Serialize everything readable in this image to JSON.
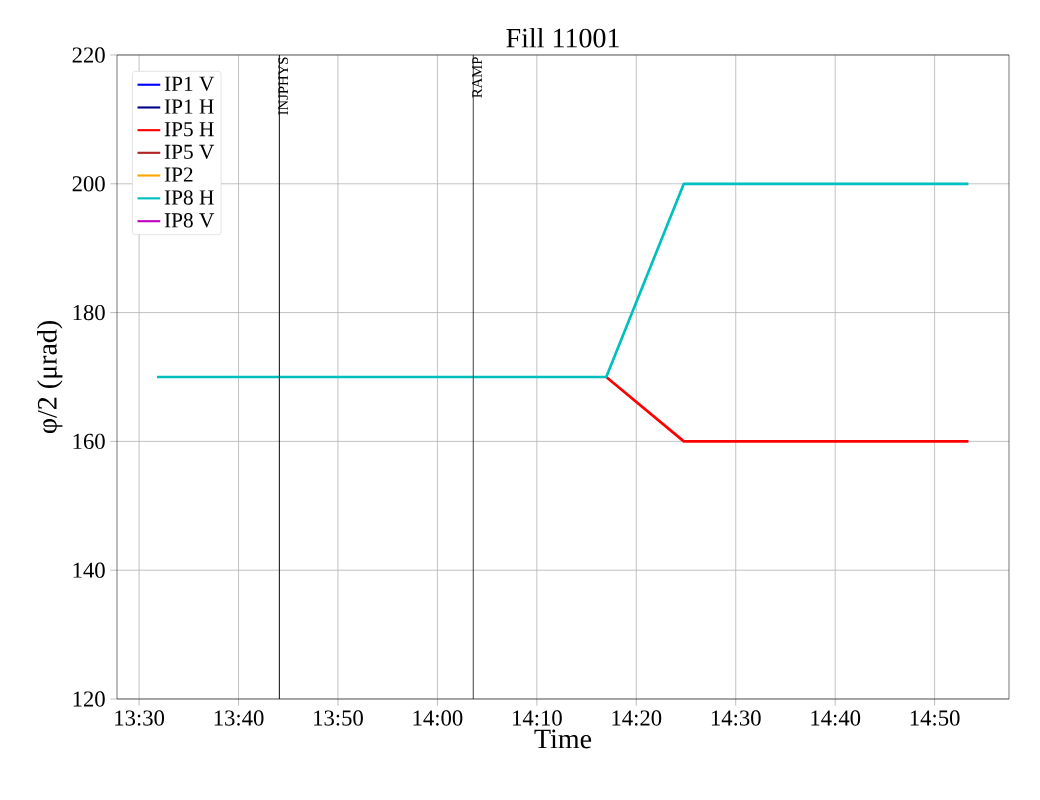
{
  "chart_data": {
    "type": "line",
    "title": "Fill 11001",
    "xlabel": "Time",
    "ylabel": "φ/2 (μrad)",
    "x": [
      13.53,
      14.283,
      14.413,
      14.89
    ],
    "series": [
      {
        "name": "IP1 V",
        "color": "#0000ff",
        "values": [
          null,
          null,
          null,
          null
        ]
      },
      {
        "name": "IP1 H",
        "color": "#00008b",
        "values": [
          null,
          null,
          null,
          null
        ]
      },
      {
        "name": "IP5 H",
        "color": "#ff0000",
        "values": [
          null,
          170,
          160,
          160
        ]
      },
      {
        "name": "IP5 V",
        "color": "#b22222",
        "values": [
          null,
          null,
          null,
          null
        ]
      },
      {
        "name": "IP2",
        "color": "#ffa500",
        "values": [
          null,
          null,
          null,
          null
        ]
      },
      {
        "name": "IP8 H",
        "color": "#00bfbf",
        "values": [
          170,
          170,
          200,
          200
        ]
      },
      {
        "name": "IP8 V",
        "color": "#bf00bf",
        "values": [
          null,
          null,
          null,
          null
        ]
      }
    ],
    "xlim": [
      13.463,
      14.958
    ],
    "xticks": [
      {
        "value": 13.5,
        "label": "13:30"
      },
      {
        "value": 13.6667,
        "label": "13:40"
      },
      {
        "value": 13.8333,
        "label": "13:50"
      },
      {
        "value": 14.0,
        "label": "14:00"
      },
      {
        "value": 14.1667,
        "label": "14:10"
      },
      {
        "value": 14.3333,
        "label": "14:20"
      },
      {
        "value": 14.5,
        "label": "14:30"
      },
      {
        "value": 14.6667,
        "label": "14:40"
      },
      {
        "value": 14.8333,
        "label": "14:50"
      }
    ],
    "ylim": [
      120,
      220
    ],
    "yticks": [
      120,
      140,
      160,
      180,
      200,
      220
    ],
    "ref_lines": [
      {
        "axis": "x",
        "value": 13.735,
        "label": "INJPHYS",
        "color": "#000000"
      },
      {
        "axis": "x",
        "value": 14.06,
        "label": "RAMP",
        "color": "#000000"
      }
    ],
    "grid": true,
    "legend": "top left",
    "line_style": "solid",
    "marker": "none"
  }
}
